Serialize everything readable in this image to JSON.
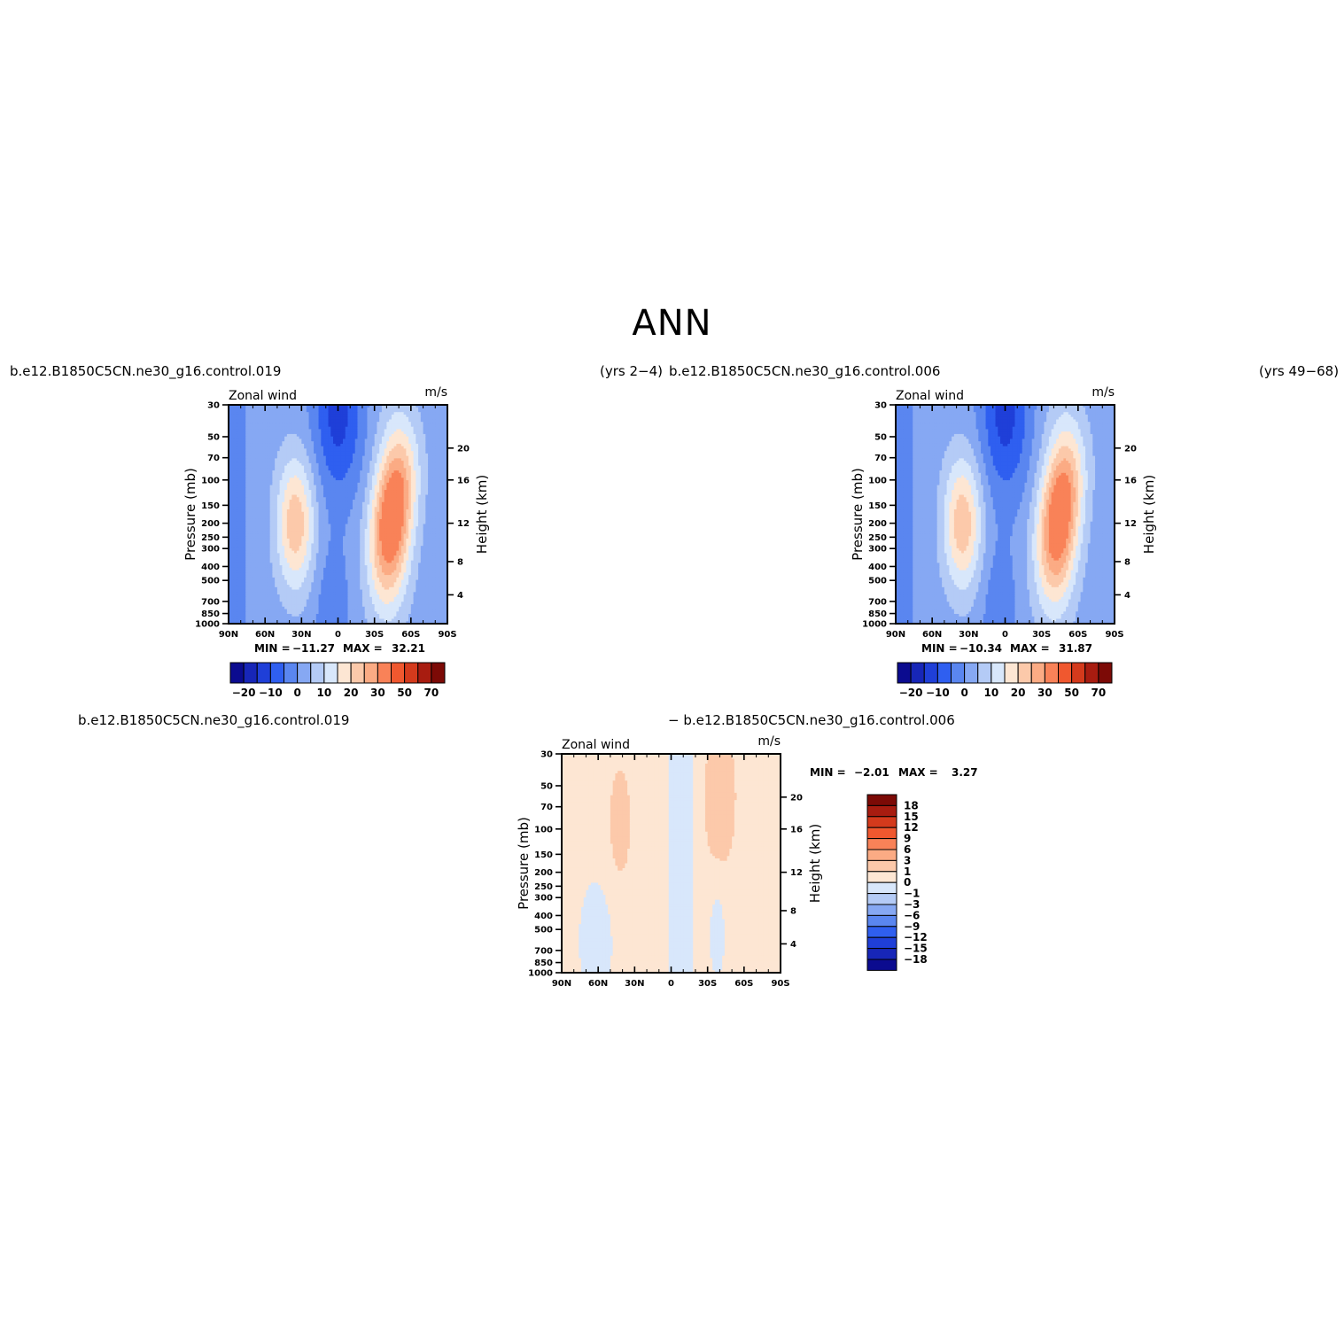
{
  "figure": {
    "title": "ANN",
    "case_1": "b.e12.B1850C5CN.ne30_g16.control.019",
    "case_1_years": "(yrs 2−4)",
    "case_2": "b.e12.B1850C5CN.ne30_g16.control.006",
    "case_2_years": "(yrs 49−68)",
    "diff_case_1": "b.e12.B1850C5CN.ne30_g16.control.019",
    "diff_case_2": "− b.e12.B1850C5CN.ne30_g16.control.006"
  },
  "chart_data": [
    {
      "type": "heatmap",
      "panel": "case_1",
      "left_label": "Zonal wind",
      "right_label": "m/s",
      "ylabel": "Pressure (mb)",
      "ylabel_right": "Height (km)",
      "x_ticks": [
        "90N",
        "60N",
        "30N",
        "0",
        "30S",
        "60S",
        "90S"
      ],
      "y_ticks": [
        "30",
        "50",
        "70",
        "100",
        "150",
        "200",
        "250",
        "300",
        "400",
        "500",
        "700",
        "850",
        "1000"
      ],
      "y_ticks_right": [
        "20",
        "16",
        "12",
        "8",
        "4"
      ],
      "ylim": [
        1000,
        30
      ],
      "y_scale": "log",
      "min_label": "MIN =",
      "min_value": "−11.27",
      "max_label": "MAX =",
      "max_value": "32.21",
      "colorbar": {
        "levels": [
          "−20",
          "−15",
          "−10",
          "−5",
          "0",
          "5",
          "10",
          "15",
          "20",
          "25",
          "30",
          "40",
          "50",
          "60",
          "70"
        ],
        "tick_labels": [
          "−20",
          "−10",
          "0",
          "10",
          "20",
          "30",
          "50",
          "70"
        ],
        "colors": [
          "#0b0b8f",
          "#1726b8",
          "#1f3fd8",
          "#2f5ff0",
          "#5a86f0",
          "#86a8f3",
          "#b4cbf6",
          "#d8e7fb",
          "#fde6d3",
          "#fcc9aa",
          "#fbab84",
          "#f98258",
          "#f0582f",
          "#d43a1c",
          "#a81c10",
          "#7c0a06"
        ]
      }
    },
    {
      "type": "heatmap",
      "panel": "case_2",
      "left_label": "Zonal wind",
      "right_label": "m/s",
      "ylabel": "Pressure (mb)",
      "ylabel_right": "Height (km)",
      "x_ticks": [
        "90N",
        "60N",
        "30N",
        "0",
        "30S",
        "60S",
        "90S"
      ],
      "y_ticks": [
        "30",
        "50",
        "70",
        "100",
        "150",
        "200",
        "250",
        "300",
        "400",
        "500",
        "700",
        "850",
        "1000"
      ],
      "y_ticks_right": [
        "20",
        "16",
        "12",
        "8",
        "4"
      ],
      "ylim": [
        1000,
        30
      ],
      "y_scale": "log",
      "min_label": "MIN =",
      "min_value": "−10.34",
      "max_label": "MAX =",
      "max_value": "31.87",
      "colorbar": {
        "levels": [
          "−20",
          "−15",
          "−10",
          "−5",
          "0",
          "5",
          "10",
          "15",
          "20",
          "25",
          "30",
          "40",
          "50",
          "60",
          "70"
        ],
        "tick_labels": [
          "−20",
          "−10",
          "0",
          "10",
          "20",
          "30",
          "50",
          "70"
        ],
        "colors": [
          "#0b0b8f",
          "#1726b8",
          "#1f3fd8",
          "#2f5ff0",
          "#5a86f0",
          "#86a8f3",
          "#b4cbf6",
          "#d8e7fb",
          "#fde6d3",
          "#fcc9aa",
          "#fbab84",
          "#f98258",
          "#f0582f",
          "#d43a1c",
          "#a81c10",
          "#7c0a06"
        ]
      }
    },
    {
      "type": "heatmap",
      "panel": "difference",
      "left_label": "Zonal wind",
      "right_label": "m/s",
      "ylabel": "Pressure (mb)",
      "ylabel_right": "Height (km)",
      "x_ticks": [
        "90N",
        "60N",
        "30N",
        "0",
        "30S",
        "60S",
        "90S"
      ],
      "y_ticks": [
        "30",
        "50",
        "70",
        "100",
        "150",
        "200",
        "250",
        "300",
        "400",
        "500",
        "700",
        "850",
        "1000"
      ],
      "y_ticks_right": [
        "20",
        "16",
        "12",
        "8",
        "4"
      ],
      "ylim": [
        1000,
        30
      ],
      "y_scale": "log",
      "min_label": "MIN =",
      "min_value": "−2.01",
      "max_label": "MAX =",
      "max_value": "3.27",
      "colorbar": {
        "levels": [
          "18",
          "15",
          "12",
          "9",
          "6",
          "3",
          "1",
          "0",
          "−1",
          "−3",
          "−6",
          "−9",
          "−12",
          "−15",
          "−18"
        ],
        "colors": [
          "#7c0a06",
          "#a81c10",
          "#d43a1c",
          "#f0582f",
          "#f98258",
          "#fbab84",
          "#fcc9aa",
          "#fde6d3",
          "#d8e7fb",
          "#b4cbf6",
          "#86a8f3",
          "#5a86f0",
          "#2f5ff0",
          "#1f3fd8",
          "#1726b8",
          "#0b0b8f"
        ]
      }
    }
  ]
}
